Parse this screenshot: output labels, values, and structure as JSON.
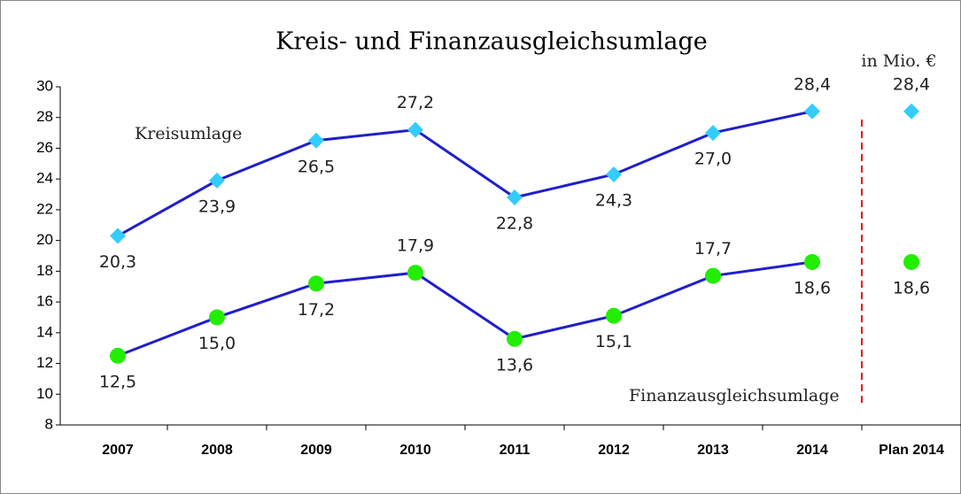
{
  "chart_data": {
    "type": "line",
    "title": "Kreis- und Finanzausgleichsumlage",
    "unit_note": "in Mio. €",
    "categories": [
      "2007",
      "2008",
      "2009",
      "2010",
      "2011",
      "2012",
      "2013",
      "2014",
      "Plan 2014"
    ],
    "series": [
      {
        "name": "Kreisumlage",
        "color": "#1f1fcc",
        "marker": "diamond",
        "marker_color": "#33ccff",
        "values": [
          20.3,
          23.9,
          26.5,
          27.2,
          22.8,
          24.3,
          27.0,
          28.4,
          28.4
        ],
        "value_labels": [
          "20,3",
          "23,9",
          "26,5",
          "27,2",
          "22,8",
          "24,3",
          "27,0",
          "28,4",
          "28,4"
        ]
      },
      {
        "name": "Finanzausgleichsumlage",
        "color": "#1f1fcc",
        "marker": "circle",
        "marker_color": "#22ee00",
        "values": [
          12.5,
          15.0,
          17.2,
          17.9,
          13.6,
          15.1,
          17.7,
          18.6,
          18.6
        ],
        "value_labels": [
          "12,5",
          "15,0",
          "17,2",
          "17,9",
          "13,6",
          "15,1",
          "17,7",
          "18,6",
          "18,6"
        ]
      }
    ],
    "ylim": [
      8,
      30
    ],
    "yticks": [
      8,
      10,
      12,
      14,
      16,
      18,
      20,
      22,
      24,
      26,
      28,
      30
    ],
    "divider_before": "Plan 2014",
    "divider_color": "#ee1111"
  }
}
